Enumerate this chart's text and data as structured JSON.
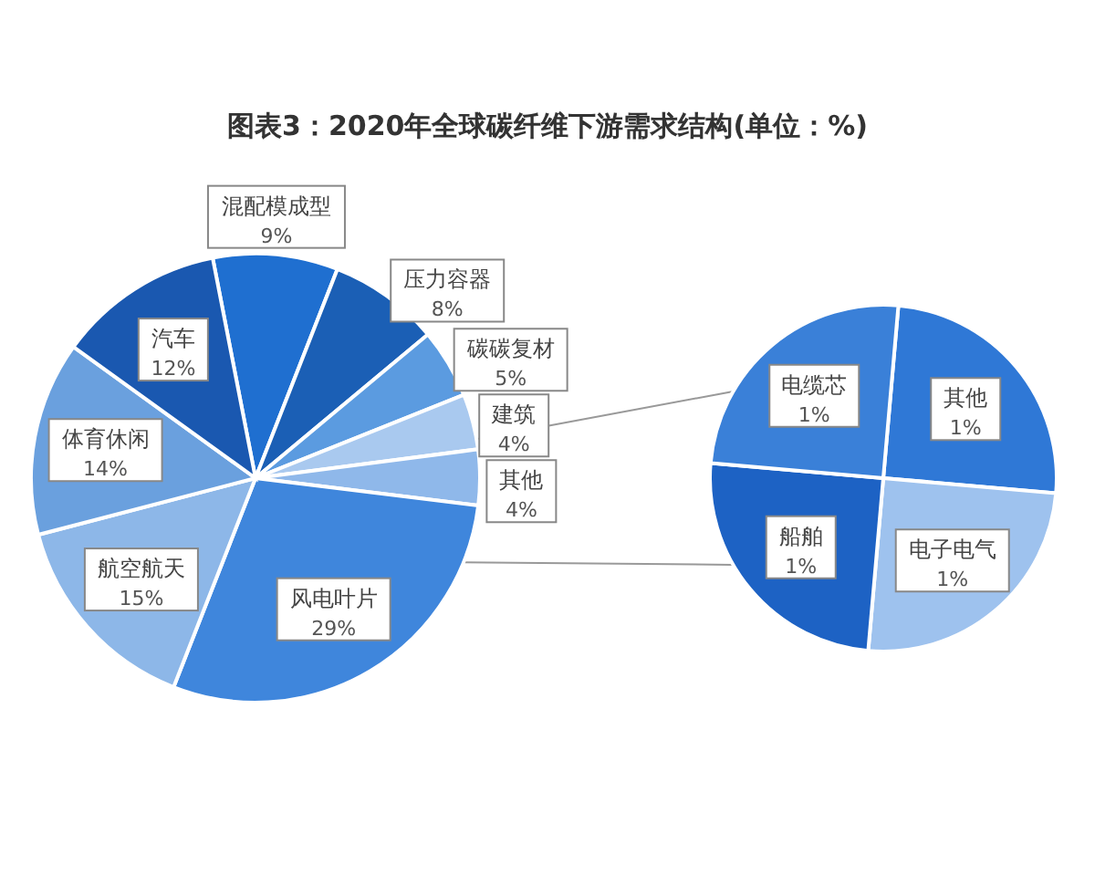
{
  "chart_data": [
    {
      "type": "pie",
      "title": "图表3：2020年全球碳纤维下游需求结构(单位：%)",
      "categories": [
        "混配模成型",
        "压力容器",
        "碳碳复材",
        "建筑",
        "其他",
        "风电叶片",
        "航空航天",
        "体育休闲",
        "汽车"
      ],
      "values": [
        9,
        8,
        5,
        4,
        4,
        29,
        15,
        14,
        12
      ],
      "value_labels": [
        "9%",
        "8%",
        "5%",
        "4%",
        "4%",
        "29%",
        "15%",
        "14%",
        "12%"
      ],
      "colors": [
        "#1f6fd0",
        "#1b5fb5",
        "#5b9be0",
        "#a9c9ef",
        "#8fb8ea",
        "#3f86dc",
        "#8db7e8",
        "#6aa0de",
        "#1a58b0"
      ]
    },
    {
      "type": "pie",
      "categories": [
        "其他",
        "电子电气",
        "船舶",
        "电缆芯"
      ],
      "values": [
        1,
        1,
        1,
        1
      ],
      "value_labels": [
        "1%",
        "1%",
        "1%",
        "1%"
      ],
      "colors": [
        "#2f78d6",
        "#9ec2ee",
        "#1d62c4",
        "#3a80d8"
      ]
    }
  ]
}
